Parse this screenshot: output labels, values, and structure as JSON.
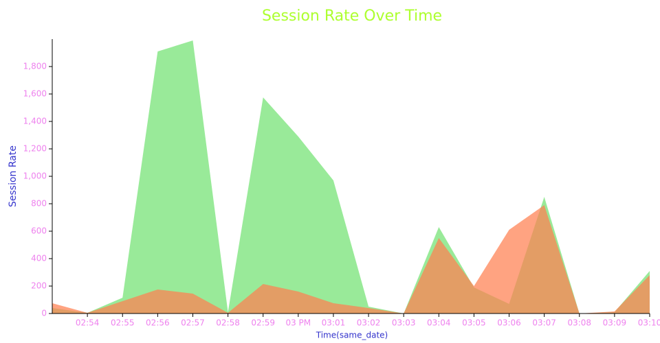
{
  "chart_data": {
    "type": "area",
    "title": "Session Rate Over Time",
    "x_label": "Time(same_date)",
    "y_label": "Session Rate",
    "categories": [
      null,
      "02:54",
      "02:55",
      "02:56",
      "02:57",
      "02:58",
      "02:59",
      "03 PM",
      "03:01",
      "03:02",
      "03:03",
      "03:04",
      "03:05",
      "03:06",
      "03:07",
      "03:08",
      "03:09",
      "03:10"
    ],
    "series": [
      {
        "color": "#90e890",
        "values": [
          40,
          5,
          115,
          1910,
          1990,
          10,
          1575,
          1290,
          970,
          50,
          0,
          630,
          190,
          70,
          850,
          0,
          10,
          310
        ]
      },
      {
        "color": "#ff7f50",
        "values": [
          75,
          5,
          90,
          175,
          145,
          5,
          215,
          160,
          75,
          40,
          0,
          550,
          200,
          610,
          790,
          0,
          15,
          280
        ]
      }
    ],
    "ylim": [
      0,
      2000
    ],
    "yticks": [
      0,
      200,
      400,
      600,
      800,
      {
        "value": 1000,
        "label": "1,000"
      },
      {
        "value": 1200,
        "label": "1,200"
      },
      {
        "value": 1400,
        "label": "1,400"
      },
      {
        "value": 1600,
        "label": "1,600"
      },
      {
        "value": 1800,
        "label": "1,800"
      }
    ]
  }
}
